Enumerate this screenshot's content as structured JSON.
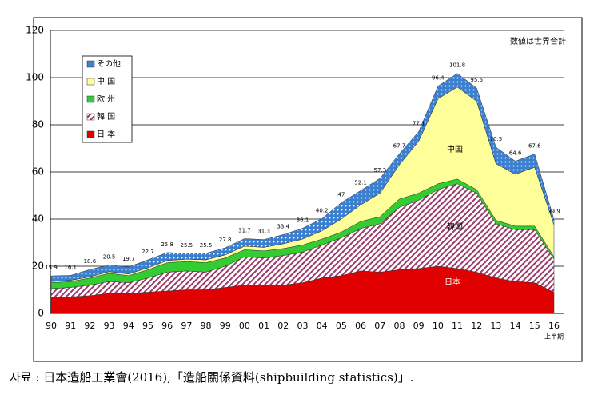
{
  "chart_data": {
    "type": "stacked-area",
    "note": "数値は世界合計",
    "x_note": "上半期",
    "categories": [
      "90",
      "91",
      "92",
      "93",
      "94",
      "95",
      "96",
      "97",
      "98",
      "99",
      "00",
      "01",
      "02",
      "03",
      "04",
      "05",
      "06",
      "07",
      "08",
      "09",
      "10",
      "11",
      "12",
      "13",
      "14",
      "15",
      "16"
    ],
    "series": [
      {
        "name": "その他",
        "color": "#3a7fd0",
        "values": [
          2.4,
          2.1,
          3.1,
          2.8,
          3.0,
          3.4,
          3.4,
          2.5,
          2.8,
          3.0,
          3.2,
          3.3,
          3.9,
          4.6,
          5.2,
          7.0,
          6.1,
          6.3,
          4.7,
          4.1,
          5.4,
          5.8,
          5.6,
          7.0,
          5.6,
          5.6,
          2.4
        ]
      },
      {
        "name": "中 国",
        "color": "#ffff99",
        "values": [
          0.5,
          0.5,
          0.5,
          0.7,
          0.7,
          0.8,
          0.9,
          1,
          1.2,
          1.3,
          1.5,
          1.5,
          2,
          2.5,
          3.5,
          5.5,
          7,
          10,
          14.5,
          22,
          36,
          39,
          37.5,
          24,
          22,
          25,
          13.5
        ]
      },
      {
        "name": "欧 州",
        "color": "#33cc33",
        "values": [
          2.5,
          2.5,
          3,
          3.5,
          3,
          3.5,
          4,
          4,
          4,
          3.5,
          3,
          3,
          3,
          3,
          2.5,
          2.5,
          3,
          3,
          3.5,
          3,
          2.5,
          2,
          1.5,
          1.5,
          1.5,
          1.5,
          1
        ]
      },
      {
        "name": "韓 国",
        "color": "#9b3b6b",
        "values": [
          3.8,
          4,
          4.5,
          5,
          4.5,
          6,
          8,
          8,
          7.5,
          9,
          12,
          11.5,
          12.5,
          13,
          14,
          16,
          18,
          20.5,
          26.5,
          29,
          32.5,
          36,
          33.5,
          23,
          22,
          22.5,
          14
        ]
      },
      {
        "name": "日 本",
        "color": "#e00000",
        "values": [
          6.7,
          7,
          7.5,
          8.5,
          8.5,
          9,
          9.5,
          10,
          10,
          11,
          12,
          12,
          12,
          13,
          15,
          16,
          18,
          17.5,
          18.5,
          19,
          20,
          19,
          17.5,
          15,
          13.5,
          13,
          9
        ]
      }
    ],
    "totals": [
      15.9,
      16.1,
      18.6,
      20.5,
      19.7,
      22.7,
      25.8,
      25.5,
      25.5,
      27.8,
      31.7,
      31.3,
      33.4,
      36.1,
      40.2,
      47.0,
      52.1,
      57.3,
      67.7,
      77.1,
      96.4,
      101.8,
      95.6,
      70.5,
      64.6,
      67.6,
      39.9
    ],
    "area_labels": [
      "中国",
      "韓国",
      "日本"
    ],
    "ylim": [
      0,
      120
    ],
    "yticks": [
      0,
      20,
      40,
      60,
      80,
      100,
      120
    ],
    "caption": "자료 : 日本造船工業會(2016),「造船關係資料(shipbuilding statistics)」."
  }
}
